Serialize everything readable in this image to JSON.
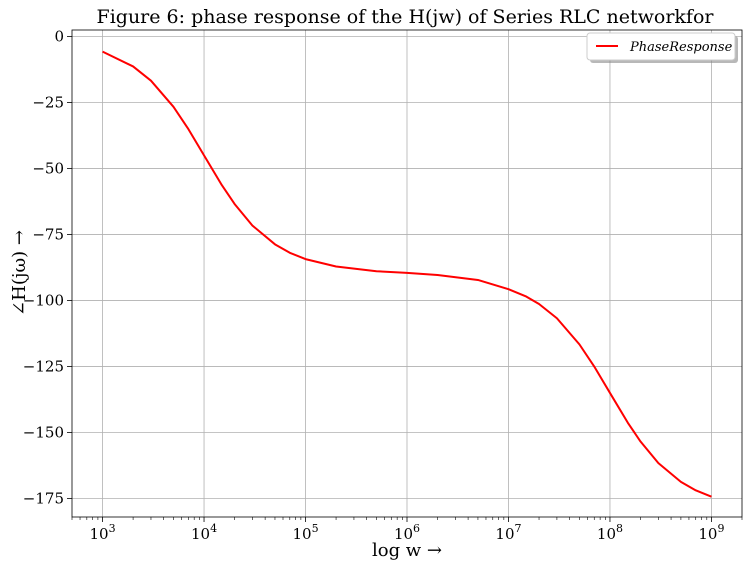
{
  "chart_data": {
    "type": "line",
    "title": "Figure 6: phase response of the H(jw) of Series RLC networkfor",
    "xlabel": "log w →",
    "ylabel": "∠H(jω) →",
    "xscale": "log",
    "xlim": [
      500,
      2000000000
    ],
    "ylim": [
      -182,
      2.5
    ],
    "xticks": [
      {
        "value": 1000,
        "base": "10",
        "exp": "3"
      },
      {
        "value": 10000,
        "base": "10",
        "exp": "4"
      },
      {
        "value": 100000,
        "base": "10",
        "exp": "5"
      },
      {
        "value": 1000000,
        "base": "10",
        "exp": "6"
      },
      {
        "value": 10000000,
        "base": "10",
        "exp": "7"
      },
      {
        "value": 100000000,
        "base": "10",
        "exp": "8"
      },
      {
        "value": 1000000000,
        "base": "10",
        "exp": "9"
      }
    ],
    "yticks": [
      {
        "value": 0,
        "label": "0"
      },
      {
        "value": -25,
        "label": "−25"
      },
      {
        "value": -50,
        "label": "−50"
      },
      {
        "value": -75,
        "label": "−75"
      },
      {
        "value": -100,
        "label": "−100"
      },
      {
        "value": -125,
        "label": "−125"
      },
      {
        "value": -150,
        "label": "−150"
      },
      {
        "value": -175,
        "label": "−175"
      }
    ],
    "grid": true,
    "legend": {
      "position": "top-right"
    },
    "series": [
      {
        "name": "PhaseResponse",
        "color": "#ff0000",
        "x": [
          1000,
          2000,
          3000,
          5000,
          7000,
          10000,
          15000,
          20000,
          30000,
          50000,
          70000,
          100000,
          200000,
          500000,
          1000000,
          2000000,
          5000000,
          10000000,
          15000000,
          20000000,
          30000000,
          50000000,
          70000000,
          100000000,
          150000000,
          200000000,
          300000000,
          500000000,
          700000000,
          1000000000
        ],
        "y": [
          -5.7,
          -11.3,
          -16.7,
          -26.6,
          -35.0,
          -45.0,
          -56.3,
          -63.4,
          -71.6,
          -78.7,
          -81.9,
          -84.3,
          -87.1,
          -88.9,
          -89.5,
          -90.3,
          -92.2,
          -95.7,
          -98.5,
          -101.3,
          -106.7,
          -116.6,
          -125.0,
          -135.0,
          -146.3,
          -153.4,
          -161.6,
          -168.7,
          -171.9,
          -174.3
        ]
      }
    ]
  }
}
